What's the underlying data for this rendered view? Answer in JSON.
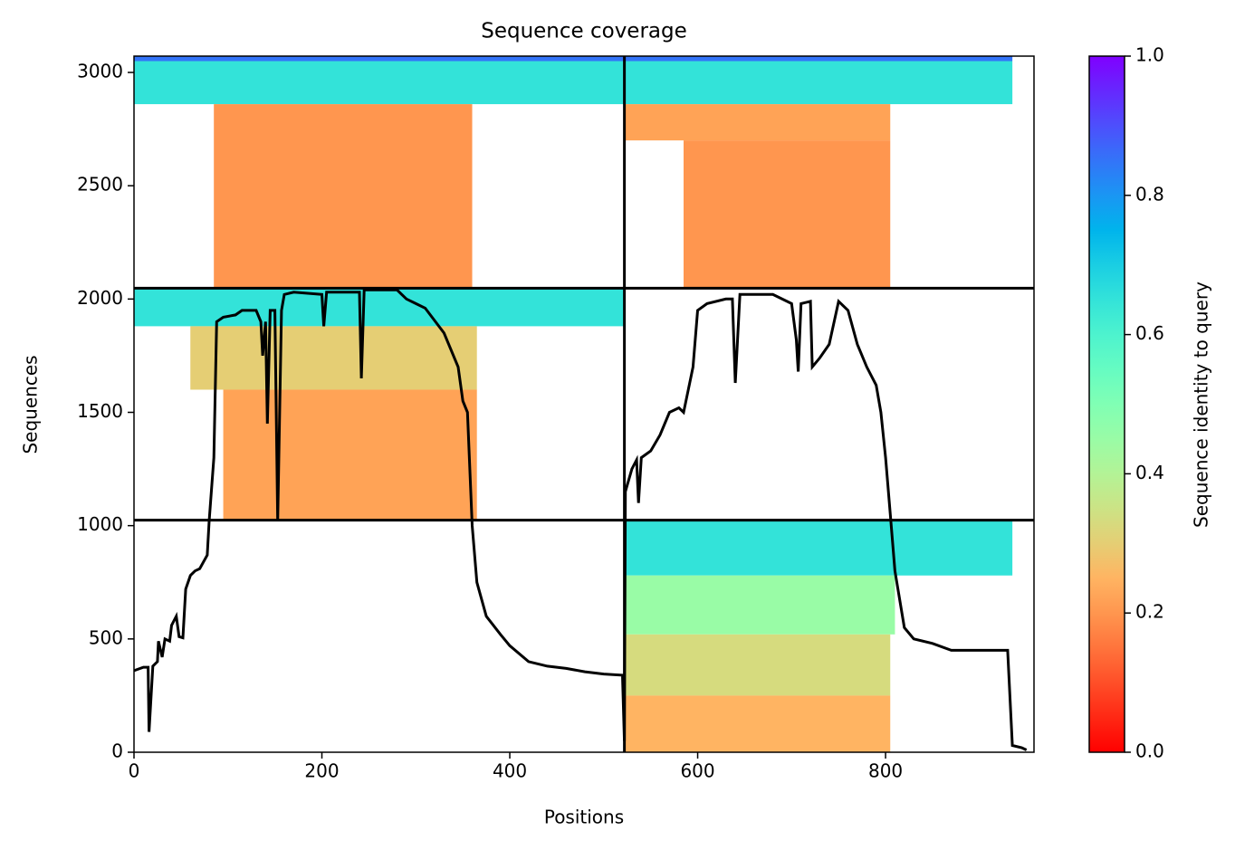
{
  "chart_data": {
    "type": "coverage",
    "title": "Sequence coverage",
    "xlabel": "Positions",
    "ylabel": "Sequences",
    "xlim": [
      0,
      958
    ],
    "ylim": [
      0,
      3072
    ],
    "xticks": [
      0,
      200,
      400,
      600,
      800
    ],
    "yticks": [
      0,
      500,
      1000,
      1500,
      2000,
      2500,
      3000
    ],
    "colormap": "rainbow_r",
    "boundaries": {
      "x": [
        522
      ],
      "y": [
        1024,
        2048
      ]
    },
    "blocks": [
      {
        "x": [
          0,
          522
        ],
        "y": [
          2860,
          3050
        ],
        "identity": 0.65
      },
      {
        "x": [
          0,
          522
        ],
        "y": [
          3050,
          3072
        ],
        "identity": 0.85
      },
      {
        "x": [
          85,
          360
        ],
        "y": [
          2048,
          2860
        ],
        "identity": 0.2
      },
      {
        "x": [
          522,
          935
        ],
        "y": [
          2860,
          3050
        ],
        "identity": 0.65
      },
      {
        "x": [
          522,
          935
        ],
        "y": [
          3050,
          3072
        ],
        "identity": 0.85
      },
      {
        "x": [
          522,
          805
        ],
        "y": [
          2700,
          2860
        ],
        "identity": 0.22
      },
      {
        "x": [
          585,
          805
        ],
        "y": [
          2048,
          2700
        ],
        "identity": 0.2
      },
      {
        "x": [
          0,
          522
        ],
        "y": [
          1880,
          2048
        ],
        "identity": 0.65
      },
      {
        "x": [
          60,
          365
        ],
        "y": [
          1600,
          1880
        ],
        "identity": 0.3
      },
      {
        "x": [
          95,
          365
        ],
        "y": [
          1024,
          1600
        ],
        "identity": 0.22
      },
      {
        "x": [
          522,
          935
        ],
        "y": [
          780,
          1024
        ],
        "identity": 0.65
      },
      {
        "x": [
          522,
          810
        ],
        "y": [
          520,
          780
        ],
        "identity": 0.45
      },
      {
        "x": [
          522,
          805
        ],
        "y": [
          250,
          520
        ],
        "identity": 0.33
      },
      {
        "x": [
          522,
          805
        ],
        "y": [
          0,
          250
        ],
        "identity": 0.25
      }
    ],
    "coverage": {
      "x": [
        0,
        10,
        15,
        16,
        20,
        25,
        26,
        30,
        33,
        38,
        40,
        45,
        48,
        52,
        55,
        60,
        65,
        70,
        78,
        80,
        85,
        88,
        95,
        108,
        115,
        130,
        135,
        137,
        140,
        142,
        145,
        150,
        153,
        157,
        160,
        170,
        200,
        202,
        205,
        240,
        242,
        245,
        280,
        290,
        300,
        310,
        330,
        345,
        350,
        355,
        360,
        365,
        375,
        390,
        400,
        420,
        440,
        460,
        480,
        500,
        520,
        522,
        523,
        530,
        535,
        537,
        540,
        550,
        560,
        570,
        580,
        585,
        590,
        595,
        600,
        610,
        630,
        637,
        640,
        645,
        680,
        700,
        705,
        707,
        710,
        720,
        722,
        730,
        740,
        750,
        760,
        770,
        780,
        790,
        795,
        800,
        805,
        810,
        820,
        830,
        850,
        870,
        890,
        910,
        930,
        935,
        945,
        950
      ],
      "y": [
        360,
        375,
        375,
        90,
        380,
        400,
        490,
        420,
        500,
        490,
        560,
        600,
        510,
        505,
        720,
        780,
        800,
        810,
        870,
        1020,
        1300,
        1900,
        1920,
        1930,
        1950,
        1950,
        1900,
        1750,
        1900,
        1450,
        1950,
        1950,
        1020,
        1950,
        2020,
        2030,
        2020,
        1880,
        2030,
        2030,
        1650,
        2040,
        2040,
        2000,
        1980,
        1960,
        1850,
        1700,
        1550,
        1500,
        1000,
        750,
        600,
        520,
        470,
        400,
        380,
        370,
        355,
        345,
        340,
        50,
        1150,
        1250,
        1290,
        1100,
        1300,
        1330,
        1400,
        1500,
        1520,
        1500,
        1600,
        1700,
        1950,
        1980,
        2000,
        2000,
        1630,
        2020,
        2020,
        1980,
        1820,
        1680,
        1980,
        1990,
        1700,
        1740,
        1800,
        1990,
        1950,
        1800,
        1700,
        1620,
        1500,
        1300,
        1050,
        800,
        550,
        500,
        480,
        450,
        450,
        450,
        450,
        30,
        20,
        10
      ],
      "color": "#000000"
    },
    "colorbar": {
      "label": "Sequence identity to query",
      "lim": [
        0,
        1
      ],
      "ticks": [
        {
          "value": 0,
          "label": "0.0"
        },
        0.2,
        0.4,
        0.6,
        0.8,
        {
          "value": 1,
          "label": "1.0"
        }
      ]
    }
  }
}
